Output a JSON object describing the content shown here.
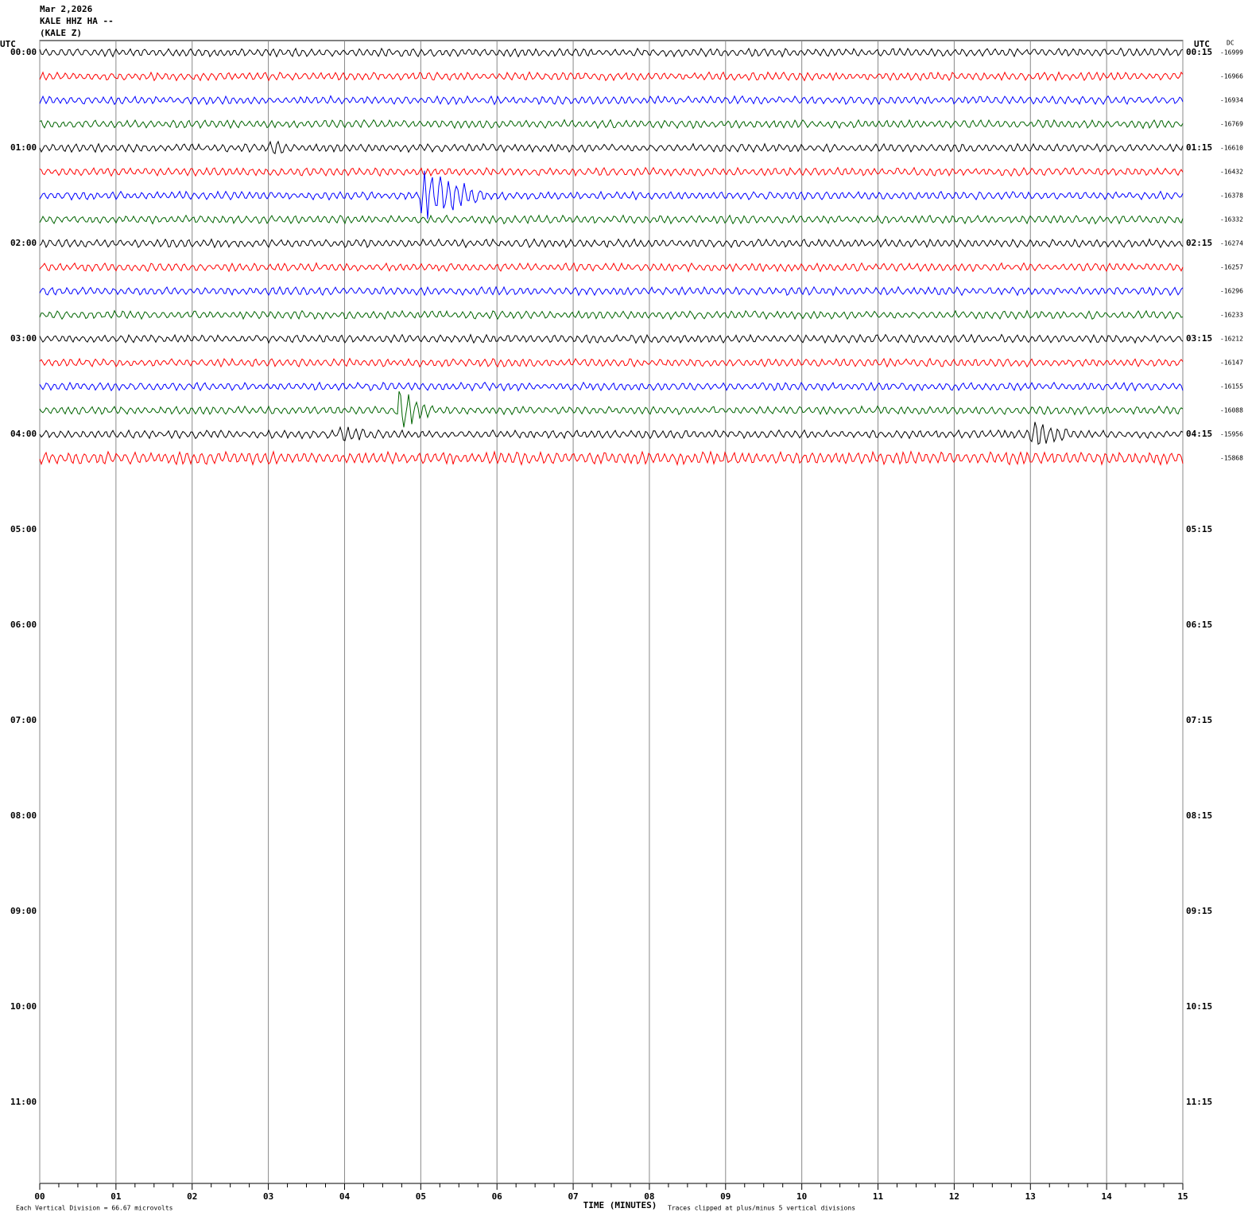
{
  "chart_data": {
    "type": "helicorder",
    "title": "Mar 2,2026",
    "subtitle": "KALE HHZ HA --",
    "station": "(KALE Z)",
    "left_axis_label": "UTC",
    "right_axis_label": "UTC",
    "dc_label": "DC",
    "xlabel": "TIME (MINUTES)",
    "scale_note": "Each Vertical Division =   66.67 microvolts",
    "clip_note": "Traces clipped at plus/minus 5 vertical divisions",
    "xlim": [
      0,
      15
    ],
    "xticks": [
      {
        "value": 0,
        "label": "00"
      },
      {
        "value": 1,
        "label": "01"
      },
      {
        "value": 2,
        "label": "02"
      },
      {
        "value": 3,
        "label": "03"
      },
      {
        "value": 4,
        "label": "04"
      },
      {
        "value": 5,
        "label": "05"
      },
      {
        "value": 6,
        "label": "06"
      },
      {
        "value": 7,
        "label": "07"
      },
      {
        "value": 8,
        "label": "08"
      },
      {
        "value": 9,
        "label": "09"
      },
      {
        "value": 10,
        "label": "10"
      },
      {
        "value": 11,
        "label": "11"
      },
      {
        "value": 12,
        "label": "12"
      },
      {
        "value": 13,
        "label": "13"
      },
      {
        "value": 14,
        "label": "14"
      },
      {
        "value": 15,
        "label": "15"
      }
    ],
    "left_times": [
      "00:00",
      "01:00",
      "02:00",
      "03:00",
      "04:00",
      "05:00",
      "06:00",
      "07:00",
      "08:00",
      "09:00",
      "10:00",
      "11:00"
    ],
    "right_times": [
      "00:15",
      "01:15",
      "02:15",
      "03:15",
      "04:15",
      "05:15",
      "06:15",
      "07:15",
      "08:15",
      "09:15",
      "10:15",
      "11:15"
    ],
    "series": [
      {
        "color": "#000000",
        "dc": -16999
      },
      {
        "color": "#ff0000",
        "dc": -16966
      },
      {
        "color": "#0000ff",
        "dc": -16934
      },
      {
        "color": "#006400",
        "dc": -16769
      },
      {
        "color": "#000000",
        "dc": -16610
      },
      {
        "color": "#ff0000",
        "dc": -16432
      },
      {
        "color": "#0000ff",
        "dc": -16378
      },
      {
        "color": "#006400",
        "dc": -16332
      },
      {
        "color": "#000000",
        "dc": -16274
      },
      {
        "color": "#ff0000",
        "dc": -16257
      },
      {
        "color": "#0000ff",
        "dc": -16296
      },
      {
        "color": "#006400",
        "dc": -16233
      },
      {
        "color": "#000000",
        "dc": -16212
      },
      {
        "color": "#ff0000",
        "dc": -16147
      },
      {
        "color": "#0000ff",
        "dc": -16155
      },
      {
        "color": "#006400",
        "dc": -16088
      },
      {
        "color": "#000000",
        "dc": -15956
      },
      {
        "color": "#ff0000",
        "dc": -15868
      }
    ]
  }
}
